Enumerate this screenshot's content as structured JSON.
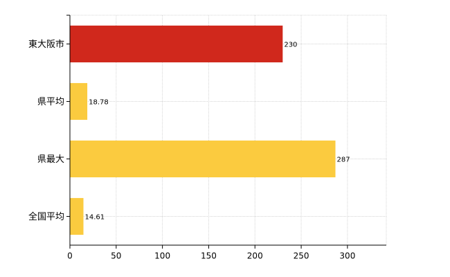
{
  "chart_data": {
    "type": "hbar",
    "categories": [
      "東大阪市",
      "県平均",
      "県最大",
      "全国平均"
    ],
    "values": [
      230,
      18.78,
      287,
      14.61
    ],
    "colors": [
      "#d0281c",
      "#fbcb3f",
      "#fbcb3f",
      "#fbcb3f"
    ],
    "xlim": [
      0,
      342
    ],
    "xticks": [
      0,
      50,
      100,
      150,
      200,
      250,
      300
    ],
    "grid": true
  }
}
